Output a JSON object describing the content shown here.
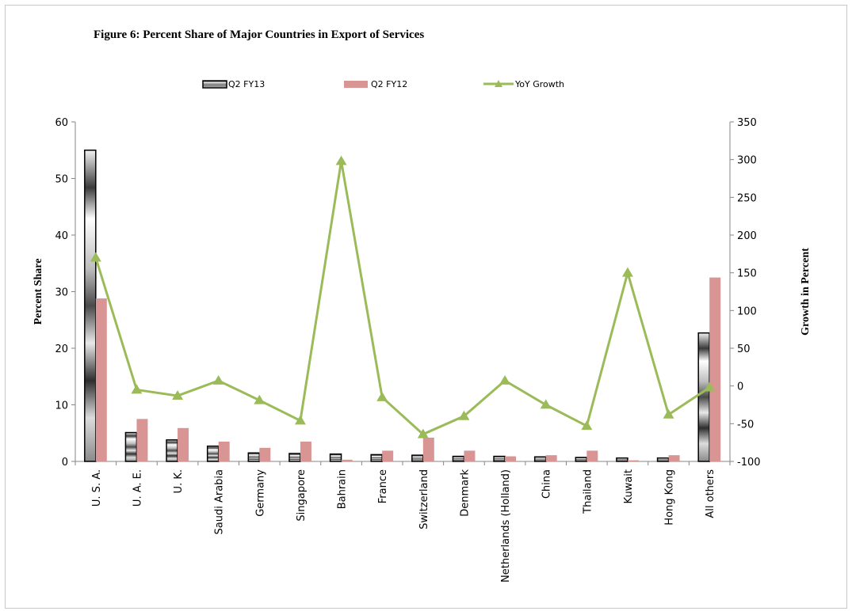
{
  "colors": {
    "q2fy13_fill": "#9e9e9e",
    "q2fy12_fill": "#d99594",
    "growth_line": "#9bbb59",
    "axis": "#868686",
    "frame": "#b0b0b0"
  },
  "chart_data": {
    "type": "bar",
    "title": "Figure 6: Percent Share of Major Countries in Export of Services",
    "ylabel": "Percent Share",
    "y2label": "Growth in Percent",
    "ylim": [
      0,
      60
    ],
    "y2lim": [
      -100,
      350
    ],
    "yticks": [
      0,
      10,
      20,
      30,
      40,
      50,
      60
    ],
    "y2ticks": [
      -100,
      -50,
      0,
      50,
      100,
      150,
      200,
      250,
      300,
      350
    ],
    "grid": false,
    "legend_position": "top",
    "categories": [
      "U. S. A.",
      "U. A. E.",
      "U. K.",
      "Saudi Arabia",
      "Germany",
      "Singapore",
      "Bahrain",
      "France",
      "Switzerland",
      "Denmark",
      "Netherlands (Holland)",
      "China",
      "Thailand",
      "Kuwait",
      "Hong Kong",
      "All others"
    ],
    "series": [
      {
        "name": "Q2 FY13",
        "type": "bar",
        "axis": "left",
        "values": [
          55.0,
          5.1,
          3.8,
          2.7,
          1.5,
          1.4,
          1.3,
          1.2,
          1.1,
          0.9,
          0.9,
          0.8,
          0.7,
          0.6,
          0.6,
          22.7
        ]
      },
      {
        "name": "Q2 FY12",
        "type": "bar",
        "axis": "left",
        "values": [
          28.8,
          7.5,
          5.9,
          3.5,
          2.4,
          3.5,
          0.3,
          1.9,
          4.2,
          1.9,
          0.9,
          1.1,
          1.9,
          0.2,
          1.1,
          32.5
        ]
      },
      {
        "name": "YoY Growth",
        "type": "line",
        "axis": "right",
        "values": [
          170,
          -5,
          -13,
          7,
          -19,
          -46,
          298,
          -15,
          -64,
          -40,
          7,
          -25,
          -53,
          150,
          -38,
          -2
        ]
      }
    ]
  }
}
